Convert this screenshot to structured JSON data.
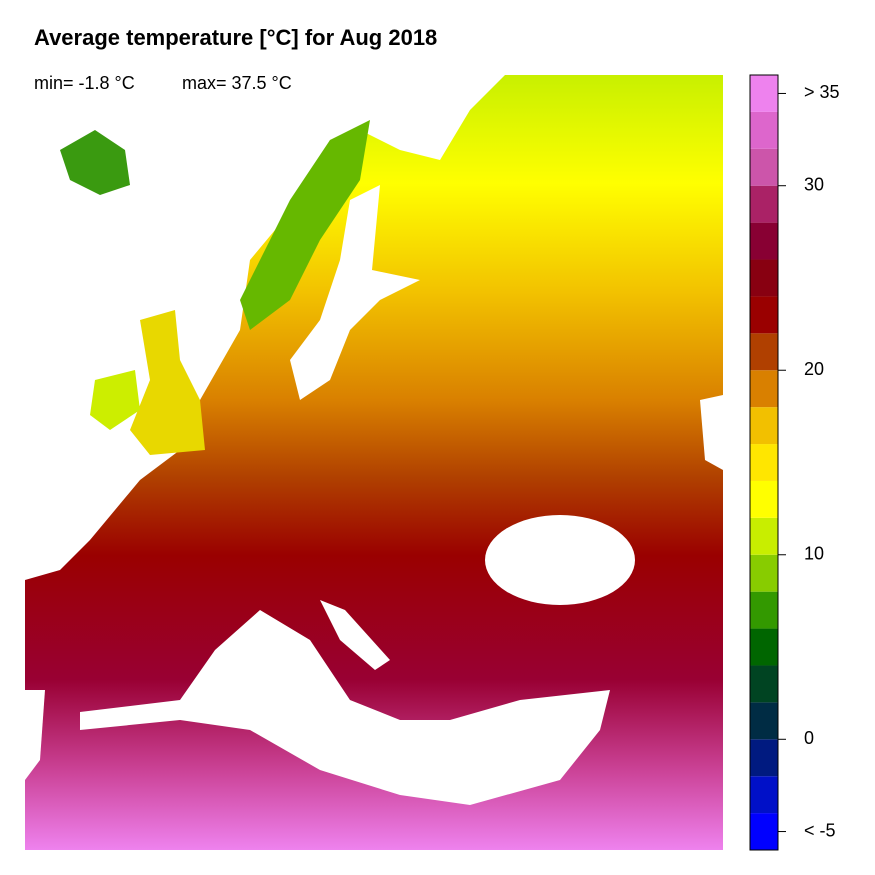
{
  "title": "Average temperature [°C] for Aug 2018",
  "annotations": {
    "min": "min= -1.8 °C",
    "max": "max= 37.5 °C"
  },
  "colorbar": {
    "lim": [
      -6,
      36
    ],
    "bins": [
      -6,
      -4,
      -2,
      0,
      2,
      4,
      6,
      8,
      10,
      12,
      14,
      16,
      18,
      20,
      22,
      24,
      26,
      28,
      30,
      32,
      34,
      36
    ],
    "colors": [
      "#0000ff",
      "#0010c8",
      "#001a80",
      "#002c44",
      "#004422",
      "#006600",
      "#339900",
      "#88cc00",
      "#c8ee00",
      "#ffff00",
      "#ffe600",
      "#f2c000",
      "#d98000",
      "#b04000",
      "#9a0000",
      "#880011",
      "#880033",
      "#aa2266",
      "#cc55aa",
      "#dd66cc",
      "#ee82ee"
    ],
    "ticks": [
      {
        "value": -5,
        "label": "< -5"
      },
      0,
      10,
      20,
      30,
      {
        "value": 35,
        "label": "> 35"
      }
    ]
  }
}
